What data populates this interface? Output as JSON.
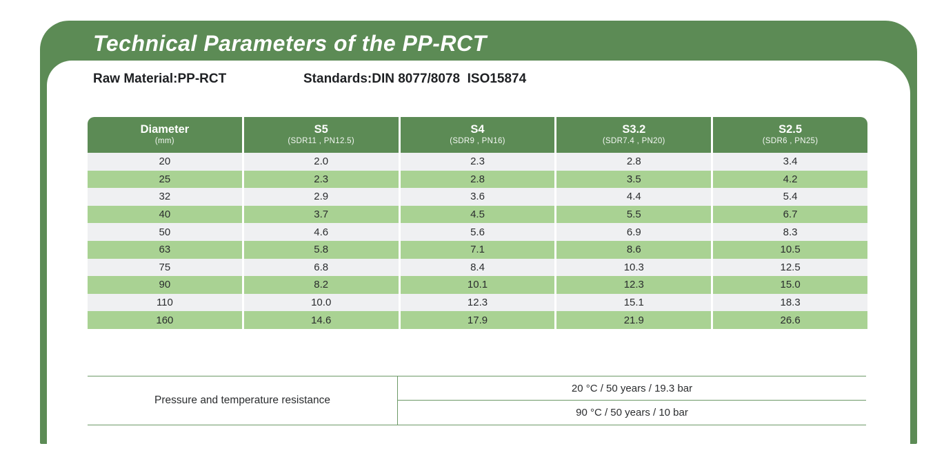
{
  "colors": {
    "accent_green": "#5c8b55",
    "row_green": "#a9d293",
    "row_gray": "#eff0f2",
    "line_green": "#6b9865",
    "title_text": "#ffffff",
    "body_text": "#2a2c2e"
  },
  "banner": {
    "title": "Technical Parameters of the PP-RCT"
  },
  "info": {
    "raw_material": "Raw Material:PP-RCT",
    "standards": "Standards:DIN 8077/8078  ISO15874"
  },
  "main_table": {
    "headers": [
      {
        "title": "Diameter",
        "sub": "(mm)"
      },
      {
        "title": "S5",
        "sub": "(SDR11 , PN12.5)"
      },
      {
        "title": "S4",
        "sub": "(SDR9 , PN16)"
      },
      {
        "title": "S3.2",
        "sub": "(SDR7.4 , PN20)"
      },
      {
        "title": "S2.5",
        "sub": "(SDR6 , PN25)"
      }
    ],
    "rows": [
      [
        "20",
        "2.0",
        "2.3",
        "2.8",
        "3.4"
      ],
      [
        "25",
        "2.3",
        "2.8",
        "3.5",
        "4.2"
      ],
      [
        "32",
        "2.9",
        "3.6",
        "4.4",
        "5.4"
      ],
      [
        "40",
        "3.7",
        "4.5",
        "5.5",
        "6.7"
      ],
      [
        "50",
        "4.6",
        "5.6",
        "6.9",
        "8.3"
      ],
      [
        "63",
        "5.8",
        "7.1",
        "8.6",
        "10.5"
      ],
      [
        "75",
        "6.8",
        "8.4",
        "10.3",
        "12.5"
      ],
      [
        "90",
        "8.2",
        "10.1",
        "12.3",
        "15.0"
      ],
      [
        "110",
        "10.0",
        "12.3",
        "15.1",
        "18.3"
      ],
      [
        "160",
        "14.6",
        "17.9",
        "21.9",
        "26.6"
      ]
    ]
  },
  "resistance_table": {
    "label": "Pressure and temperature resistance",
    "rows": [
      "20 °C / 50 years / 19.3 bar",
      "90 °C / 50 years / 10 bar"
    ]
  }
}
